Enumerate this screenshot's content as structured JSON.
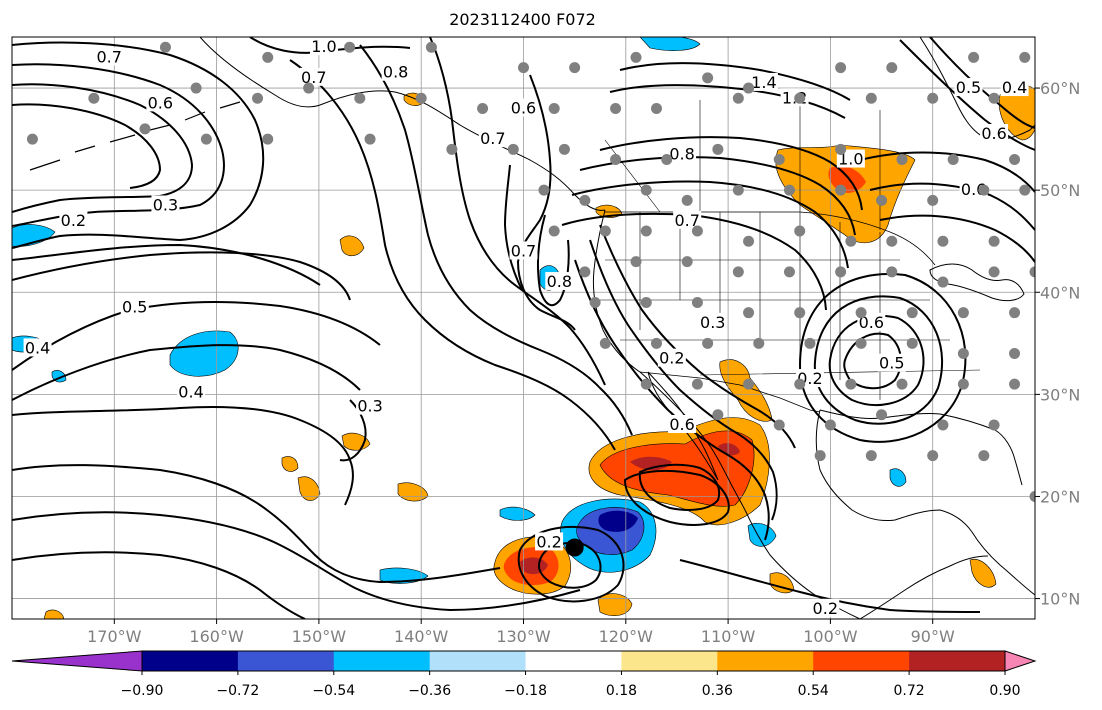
{
  "title": "2023112400 F072",
  "map": {
    "lon_labels": [
      {
        "lon": -170,
        "text": "170°W"
      },
      {
        "lon": -160,
        "text": "160°W"
      },
      {
        "lon": -150,
        "text": "150°W"
      },
      {
        "lon": -140,
        "text": "140°W"
      },
      {
        "lon": -130,
        "text": "130°W"
      },
      {
        "lon": -120,
        "text": "120°W"
      },
      {
        "lon": -110,
        "text": "110°W"
      },
      {
        "lon": -100,
        "text": "100°W"
      },
      {
        "lon": -90,
        "text": "90°W"
      }
    ],
    "lat_labels": [
      {
        "lat": 60,
        "text": "60°N"
      },
      {
        "lat": 50,
        "text": "50°N"
      },
      {
        "lat": 40,
        "text": "40°N"
      },
      {
        "lat": 30,
        "text": "30°N"
      },
      {
        "lat": 20,
        "text": "20°N"
      },
      {
        "lat": 10,
        "text": "10°N"
      }
    ],
    "extent": {
      "lon_min": -180,
      "lon_max": -80,
      "lat_min": 8,
      "lat_max": 65
    },
    "marker": {
      "lon": -125,
      "lat": 15
    },
    "contour_labels": [
      {
        "text": "1.0",
        "lon": -149.5,
        "lat": 64.0
      },
      {
        "text": "0.8",
        "lon": -142.5,
        "lat": 61.5
      },
      {
        "text": "0.7",
        "lon": -170.5,
        "lat": 63.0
      },
      {
        "text": "0.7",
        "lon": -150.5,
        "lat": 61.0
      },
      {
        "text": "0.6",
        "lon": -165.5,
        "lat": 58.5
      },
      {
        "text": "0.6",
        "lon": -130.0,
        "lat": 58.0
      },
      {
        "text": "0.7",
        "lon": -133.0,
        "lat": 55.0
      },
      {
        "text": "0.2",
        "lon": -174.0,
        "lat": 47.0
      },
      {
        "text": "0.3",
        "lon": -165.0,
        "lat": 48.5
      },
      {
        "text": "0.5",
        "lon": -168.0,
        "lat": 38.5
      },
      {
        "text": "0.4",
        "lon": -177.5,
        "lat": 34.5
      },
      {
        "text": "0.4",
        "lon": -162.5,
        "lat": 30.2
      },
      {
        "text": "0.3",
        "lon": -145.0,
        "lat": 28.8
      },
      {
        "text": "0.7",
        "lon": -130.0,
        "lat": 44.0
      },
      {
        "text": "0.8",
        "lon": -126.5,
        "lat": 41.0
      },
      {
        "text": "0.8",
        "lon": -114.5,
        "lat": 53.5
      },
      {
        "text": "0.7",
        "lon": -114.0,
        "lat": 47.0
      },
      {
        "text": "0.3",
        "lon": -111.5,
        "lat": 37.0
      },
      {
        "text": "0.2",
        "lon": -115.5,
        "lat": 33.5
      },
      {
        "text": "0.6",
        "lon": -114.5,
        "lat": 27.0
      },
      {
        "text": "0.2",
        "lon": -127.5,
        "lat": 15.5
      },
      {
        "text": "1.4",
        "lon": -106.5,
        "lat": 60.5
      },
      {
        "text": "1.2",
        "lon": -103.5,
        "lat": 59.0
      },
      {
        "text": "1.0",
        "lon": -98.0,
        "lat": 53.0
      },
      {
        "text": "0.6",
        "lon": -86.0,
        "lat": 50.0
      },
      {
        "text": "0.6",
        "lon": -84.0,
        "lat": 55.5
      },
      {
        "text": "0.5",
        "lon": -86.5,
        "lat": 60.0
      },
      {
        "text": "0.4",
        "lon": -82.0,
        "lat": 60.0
      },
      {
        "text": "0.6",
        "lon": -96.0,
        "lat": 37.0
      },
      {
        "text": "0.5",
        "lon": -94.0,
        "lat": 33.0
      },
      {
        "text": "0.2",
        "lon": -102.0,
        "lat": 31.5
      },
      {
        "text": "0.2",
        "lon": -100.5,
        "lat": 9.0
      }
    ],
    "stations": [
      [
        -165,
        64
      ],
      [
        -155,
        63
      ],
      [
        -147,
        64
      ],
      [
        -139,
        64
      ],
      [
        -130,
        62
      ],
      [
        -125,
        62
      ],
      [
        -119,
        63
      ],
      [
        -112,
        61
      ],
      [
        -108,
        60
      ],
      [
        -99,
        62
      ],
      [
        -94,
        62
      ],
      [
        -86,
        63
      ],
      [
        -81,
        63
      ],
      [
        -172,
        59
      ],
      [
        -162,
        60
      ],
      [
        -156,
        59
      ],
      [
        -151,
        60
      ],
      [
        -146,
        59
      ],
      [
        -140,
        59
      ],
      [
        -134,
        58
      ],
      [
        -127,
        58
      ],
      [
        -121,
        58
      ],
      [
        -117,
        58
      ],
      [
        -109,
        59
      ],
      [
        -103,
        59
      ],
      [
        -96,
        59
      ],
      [
        -90,
        59
      ],
      [
        -84,
        59
      ],
      [
        -178,
        55
      ],
      [
        -167,
        56
      ],
      [
        -161,
        55
      ],
      [
        -155,
        55
      ],
      [
        -145,
        55
      ],
      [
        -137,
        54
      ],
      [
        -131,
        54
      ],
      [
        -126,
        54
      ],
      [
        -121,
        53
      ],
      [
        -116,
        53
      ],
      [
        -111,
        54
      ],
      [
        -105,
        53
      ],
      [
        -99,
        54
      ],
      [
        -93,
        53
      ],
      [
        -88,
        53
      ],
      [
        -82,
        53
      ],
      [
        -128,
        50
      ],
      [
        -124,
        49
      ],
      [
        -118,
        50
      ],
      [
        -114,
        49
      ],
      [
        -109,
        50
      ],
      [
        -104,
        50
      ],
      [
        -99,
        50
      ],
      [
        -95,
        49
      ],
      [
        -90,
        49
      ],
      [
        -85,
        50
      ],
      [
        -81,
        50
      ],
      [
        -127,
        46
      ],
      [
        -122,
        46
      ],
      [
        -118,
        46
      ],
      [
        -113,
        46
      ],
      [
        -108,
        45
      ],
      [
        -103,
        46
      ],
      [
        -98,
        45
      ],
      [
        -94,
        45
      ],
      [
        -89,
        45
      ],
      [
        -84,
        45
      ],
      [
        -124,
        42
      ],
      [
        -119,
        43
      ],
      [
        -114,
        43
      ],
      [
        -109,
        42
      ],
      [
        -104,
        42
      ],
      [
        -99,
        42
      ],
      [
        -94,
        42
      ],
      [
        -89,
        41
      ],
      [
        -84,
        42
      ],
      [
        -80,
        42
      ],
      [
        -123,
        39
      ],
      [
        -118,
        39
      ],
      [
        -113,
        39
      ],
      [
        -108,
        38
      ],
      [
        -103,
        38
      ],
      [
        -97,
        38
      ],
      [
        -92,
        38
      ],
      [
        -87,
        38
      ],
      [
        -82,
        38
      ],
      [
        -122,
        35
      ],
      [
        -117,
        35
      ],
      [
        -112,
        35
      ],
      [
        -107,
        35
      ],
      [
        -102,
        35
      ],
      [
        -97,
        35
      ],
      [
        -92,
        35
      ],
      [
        -87,
        34
      ],
      [
        -82,
        34
      ],
      [
        -118,
        31
      ],
      [
        -113,
        31
      ],
      [
        -108,
        31
      ],
      [
        -103,
        31
      ],
      [
        -98,
        31
      ],
      [
        -93,
        31
      ],
      [
        -87,
        31
      ],
      [
        -82,
        31
      ],
      [
        -111,
        28
      ],
      [
        -105,
        27
      ],
      [
        -100,
        27
      ],
      [
        -95,
        28
      ],
      [
        -89,
        27
      ],
      [
        -84,
        27
      ],
      [
        -101,
        24
      ],
      [
        -96,
        24
      ],
      [
        -90,
        24
      ],
      [
        -85,
        24
      ],
      [
        -80,
        20
      ]
    ]
  },
  "colorbar": {
    "ticks": [
      "−0.90",
      "−0.72",
      "−0.54",
      "−0.36",
      "−0.18",
      "0.18",
      "0.36",
      "0.54",
      "0.72",
      "0.90"
    ],
    "colors": [
      "#9932cc",
      "#00008b",
      "#3a56d4",
      "#00bfff",
      "#b0e0fa",
      "#ffffff",
      "#fce68c",
      "#ffa500",
      "#ff4500",
      "#b22222",
      "#f886b4"
    ]
  }
}
